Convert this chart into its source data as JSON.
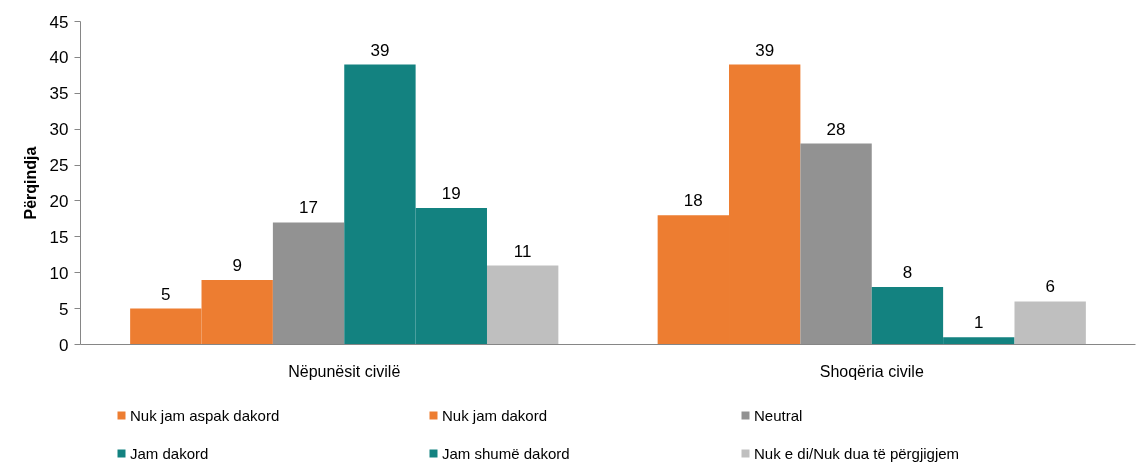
{
  "chart_data": {
    "type": "bar",
    "ylabel": "Përqindja",
    "categories": [
      "Nëpunësit civilë",
      "Shoqëria civile"
    ],
    "series": [
      {
        "name": "Nuk jam aspak dakord",
        "color": "#ed7d31",
        "values": [
          5,
          18
        ]
      },
      {
        "name": "Nuk jam dakord",
        "color": "#ed7d31",
        "values": [
          9,
          39
        ]
      },
      {
        "name": "Neutral",
        "color": "#929292",
        "values": [
          17,
          28
        ]
      },
      {
        "name": "Jam dakord",
        "color": "#138280",
        "values": [
          39,
          8
        ]
      },
      {
        "name": "Jam shumë dakord",
        "color": "#138280",
        "values": [
          19,
          1
        ]
      },
      {
        "name": "Nuk e di/Nuk dua të përgjigjem",
        "color": "#bfbfbf",
        "values": [
          11,
          6
        ]
      }
    ],
    "ylim": [
      0,
      45
    ],
    "yticks": [
      0,
      5,
      10,
      15,
      20,
      25,
      30,
      35,
      40,
      45
    ],
    "legend": "bottom",
    "data_labels": true
  }
}
